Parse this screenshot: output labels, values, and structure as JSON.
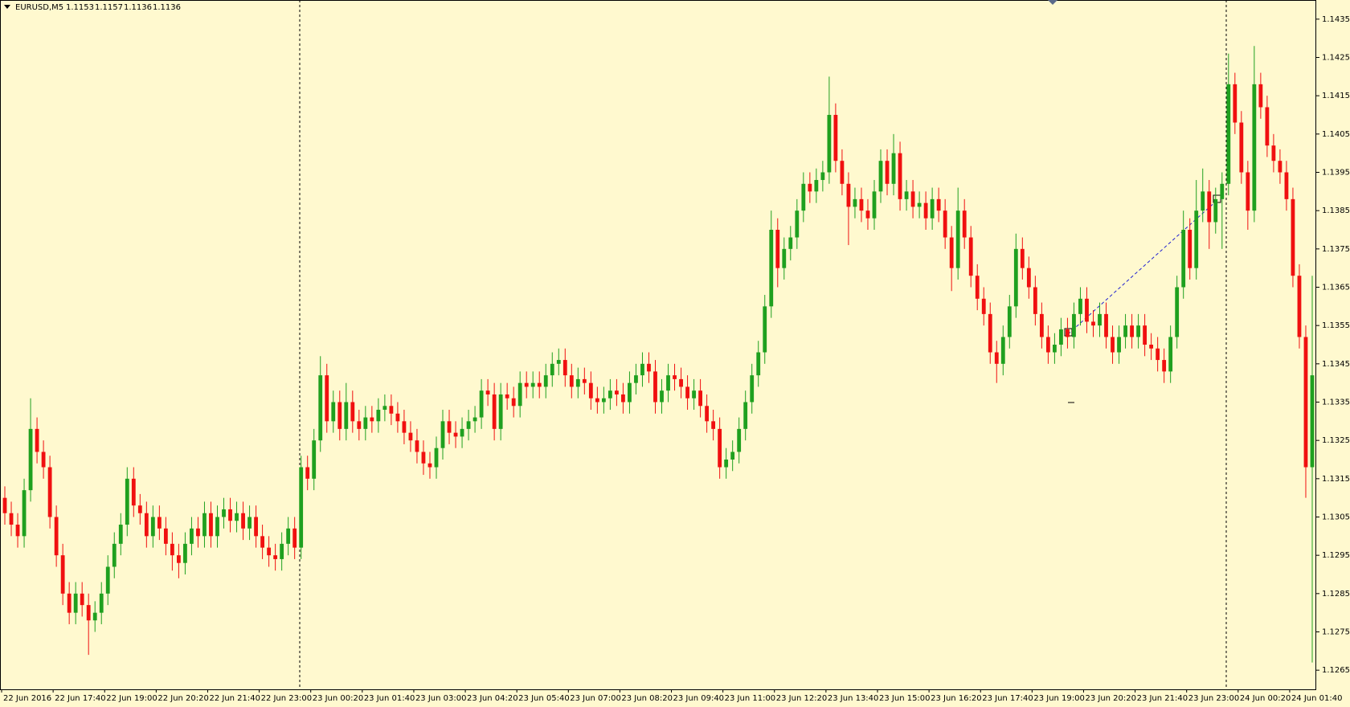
{
  "chart_data": {
    "type": "candlestick",
    "symbol": "EURUSD,M5",
    "quote": [
      1.1153,
      1.1157,
      1.1136,
      1.1136
    ],
    "up_color": "#1fa01f",
    "down_color": "#f01010",
    "ylim": [
      1.126,
      1.144
    ],
    "yticks": [
      1.1265,
      1.1275,
      1.1285,
      1.1295,
      1.1305,
      1.1315,
      1.1325,
      1.1335,
      1.1345,
      1.1355,
      1.1365,
      1.1375,
      1.1385,
      1.1395,
      1.1405,
      1.1415,
      1.1425,
      1.1435
    ],
    "xticks": [
      {
        "value": 0,
        "label": "22 Jun 2016"
      },
      {
        "value": 8,
        "label": "22 Jun 17:40"
      },
      {
        "value": 16,
        "label": "22 Jun 19:00"
      },
      {
        "value": 24,
        "label": "22 Jun 20:20"
      },
      {
        "value": 32,
        "label": "22 Jun 21:40"
      },
      {
        "value": 40,
        "label": "22 Jun 23:00"
      },
      {
        "value": 48,
        "label": "23 Jun 00:20"
      },
      {
        "value": 56,
        "label": "23 Jun 01:40"
      },
      {
        "value": 64,
        "label": "23 Jun 03:00"
      },
      {
        "value": 72,
        "label": "23 Jun 04:20"
      },
      {
        "value": 80,
        "label": "23 Jun 05:40"
      },
      {
        "value": 88,
        "label": "23 Jun 07:00"
      },
      {
        "value": 96,
        "label": "23 Jun 08:20"
      },
      {
        "value": 104,
        "label": "23 Jun 09:40"
      },
      {
        "value": 112,
        "label": "23 Jun 11:00"
      },
      {
        "value": 120,
        "label": "23 Jun 12:20"
      },
      {
        "value": 128,
        "label": "23 Jun 13:40"
      },
      {
        "value": 136,
        "label": "23 Jun 15:00"
      },
      {
        "value": 144,
        "label": "23 Jun 16:20"
      },
      {
        "value": 152,
        "label": "23 Jun 17:40"
      },
      {
        "value": 160,
        "label": "23 Jun 19:00"
      },
      {
        "value": 168,
        "label": "23 Jun 20:20"
      },
      {
        "value": 176,
        "label": "23 Jun 21:40"
      },
      {
        "value": 184,
        "label": "23 Jun 23:00"
      },
      {
        "value": 192,
        "label": "24 Jun 00:20"
      },
      {
        "value": 200,
        "label": "24 Jun 01:40"
      }
    ],
    "candles": [
      [
        1.131,
        1.1313,
        1.1303,
        1.1306
      ],
      [
        1.1306,
        1.1309,
        1.13,
        1.1303
      ],
      [
        1.1303,
        1.1306,
        1.1297,
        1.13
      ],
      [
        1.13,
        1.1315,
        1.1297,
        1.1312
      ],
      [
        1.1312,
        1.1336,
        1.1309,
        1.1328
      ],
      [
        1.1328,
        1.1331,
        1.1319,
        1.1322
      ],
      [
        1.1322,
        1.1325,
        1.1315,
        1.1318
      ],
      [
        1.1318,
        1.1321,
        1.1302,
        1.1305
      ],
      [
        1.1305,
        1.1308,
        1.1292,
        1.1295
      ],
      [
        1.1295,
        1.1298,
        1.1282,
        1.1285
      ],
      [
        1.1285,
        1.1288,
        1.1277,
        1.128
      ],
      [
        1.128,
        1.1288,
        1.1277,
        1.1285
      ],
      [
        1.1285,
        1.1288,
        1.1279,
        1.1282
      ],
      [
        1.1282,
        1.1285,
        1.1269,
        1.1278
      ],
      [
        1.1278,
        1.1283,
        1.1275,
        1.128
      ],
      [
        1.128,
        1.1288,
        1.1277,
        1.1285
      ],
      [
        1.1285,
        1.1295,
        1.1282,
        1.1292
      ],
      [
        1.1292,
        1.1301,
        1.1289,
        1.1298
      ],
      [
        1.1298,
        1.1306,
        1.1295,
        1.1303
      ],
      [
        1.1303,
        1.1318,
        1.13,
        1.1315
      ],
      [
        1.1315,
        1.1318,
        1.1305,
        1.1308
      ],
      [
        1.1308,
        1.1311,
        1.1303,
        1.1306
      ],
      [
        1.1306,
        1.1309,
        1.1297,
        1.13
      ],
      [
        1.13,
        1.1308,
        1.1297,
        1.1305
      ],
      [
        1.1305,
        1.1308,
        1.1299,
        1.1302
      ],
      [
        1.1302,
        1.1305,
        1.1295,
        1.1298
      ],
      [
        1.1298,
        1.1301,
        1.1291,
        1.1295
      ],
      [
        1.1295,
        1.1298,
        1.1289,
        1.1293
      ],
      [
        1.1293,
        1.1301,
        1.129,
        1.1298
      ],
      [
        1.1298,
        1.1305,
        1.1295,
        1.1302
      ],
      [
        1.1302,
        1.1305,
        1.1297,
        1.13
      ],
      [
        1.13,
        1.1309,
        1.1297,
        1.1306
      ],
      [
        1.1306,
        1.1309,
        1.1297,
        1.13
      ],
      [
        1.13,
        1.1308,
        1.1297,
        1.1305
      ],
      [
        1.1305,
        1.131,
        1.1302,
        1.1307
      ],
      [
        1.1307,
        1.131,
        1.1301,
        1.1304
      ],
      [
        1.1304,
        1.1309,
        1.1301,
        1.1306
      ],
      [
        1.1306,
        1.1309,
        1.1299,
        1.1302
      ],
      [
        1.1302,
        1.1308,
        1.1299,
        1.1305
      ],
      [
        1.1305,
        1.1308,
        1.1297,
        1.13
      ],
      [
        1.13,
        1.1303,
        1.1294,
        1.1297
      ],
      [
        1.1297,
        1.13,
        1.1292,
        1.1295
      ],
      [
        1.1295,
        1.1298,
        1.1291,
        1.1294
      ],
      [
        1.1294,
        1.1301,
        1.1291,
        1.1298
      ],
      [
        1.1298,
        1.1305,
        1.1295,
        1.1302
      ],
      [
        1.1302,
        1.1305,
        1.1294,
        1.1297
      ],
      [
        1.1297,
        1.1321,
        1.1294,
        1.1318
      ],
      [
        1.1318,
        1.1321,
        1.1312,
        1.1315
      ],
      [
        1.1315,
        1.1328,
        1.1312,
        1.1325
      ],
      [
        1.1325,
        1.1347,
        1.1322,
        1.1342
      ],
      [
        1.1342,
        1.1345,
        1.1327,
        1.133
      ],
      [
        1.133,
        1.1338,
        1.1327,
        1.1335
      ],
      [
        1.1335,
        1.1338,
        1.1325,
        1.1328
      ],
      [
        1.1328,
        1.134,
        1.1325,
        1.1335
      ],
      [
        1.1335,
        1.1338,
        1.1327,
        1.133
      ],
      [
        1.133,
        1.1333,
        1.1325,
        1.1328
      ],
      [
        1.1328,
        1.1334,
        1.1325,
        1.1331
      ],
      [
        1.1331,
        1.1334,
        1.1327,
        1.133
      ],
      [
        1.133,
        1.1336,
        1.1327,
        1.1333
      ],
      [
        1.1333,
        1.1337,
        1.133,
        1.1334
      ],
      [
        1.1334,
        1.1337,
        1.1329,
        1.1332
      ],
      [
        1.1332,
        1.1335,
        1.1327,
        1.133
      ],
      [
        1.133,
        1.1333,
        1.1324,
        1.1327
      ],
      [
        1.1327,
        1.133,
        1.1322,
        1.1325
      ],
      [
        1.1325,
        1.1328,
        1.1319,
        1.1322
      ],
      [
        1.1322,
        1.1325,
        1.1316,
        1.1319
      ],
      [
        1.1319,
        1.1322,
        1.1315,
        1.1318
      ],
      [
        1.1318,
        1.1326,
        1.1315,
        1.1323
      ],
      [
        1.1323,
        1.1333,
        1.132,
        1.133
      ],
      [
        1.133,
        1.1333,
        1.1324,
        1.1327
      ],
      [
        1.1327,
        1.133,
        1.1323,
        1.1326
      ],
      [
        1.1326,
        1.1331,
        1.1323,
        1.1328
      ],
      [
        1.1328,
        1.1333,
        1.1325,
        1.133
      ],
      [
        1.133,
        1.1334,
        1.1327,
        1.1331
      ],
      [
        1.1331,
        1.1341,
        1.1328,
        1.1338
      ],
      [
        1.1338,
        1.1341,
        1.1334,
        1.1337
      ],
      [
        1.1337,
        1.134,
        1.1325,
        1.1328
      ],
      [
        1.1328,
        1.134,
        1.1325,
        1.1337
      ],
      [
        1.1337,
        1.134,
        1.1333,
        1.1336
      ],
      [
        1.1336,
        1.1339,
        1.1331,
        1.1334
      ],
      [
        1.1334,
        1.1343,
        1.1331,
        1.134
      ],
      [
        1.134,
        1.1343,
        1.1336,
        1.1339
      ],
      [
        1.1339,
        1.1343,
        1.1336,
        1.134
      ],
      [
        1.134,
        1.1343,
        1.1336,
        1.1339
      ],
      [
        1.1339,
        1.1345,
        1.1336,
        1.1342
      ],
      [
        1.1342,
        1.1348,
        1.1339,
        1.1345
      ],
      [
        1.1345,
        1.1349,
        1.1342,
        1.1346
      ],
      [
        1.1346,
        1.1349,
        1.1339,
        1.1342
      ],
      [
        1.1342,
        1.1345,
        1.1336,
        1.1339
      ],
      [
        1.1339,
        1.1344,
        1.1336,
        1.1341
      ],
      [
        1.1341,
        1.1344,
        1.1337,
        1.134
      ],
      [
        1.134,
        1.1343,
        1.1333,
        1.1336
      ],
      [
        1.1336,
        1.1339,
        1.1332,
        1.1335
      ],
      [
        1.1335,
        1.1339,
        1.1332,
        1.1336
      ],
      [
        1.1336,
        1.1341,
        1.1333,
        1.1338
      ],
      [
        1.1338,
        1.1341,
        1.1334,
        1.1337
      ],
      [
        1.1337,
        1.134,
        1.1332,
        1.1335
      ],
      [
        1.1335,
        1.1343,
        1.1332,
        1.134
      ],
      [
        1.134,
        1.1345,
        1.1337,
        1.1342
      ],
      [
        1.1342,
        1.1348,
        1.1339,
        1.1345
      ],
      [
        1.1345,
        1.1348,
        1.134,
        1.1343
      ],
      [
        1.1343,
        1.1346,
        1.1332,
        1.1335
      ],
      [
        1.1335,
        1.1341,
        1.1332,
        1.1338
      ],
      [
        1.1338,
        1.1345,
        1.1335,
        1.1342
      ],
      [
        1.1342,
        1.1345,
        1.1338,
        1.1341
      ],
      [
        1.1341,
        1.1344,
        1.1336,
        1.1339
      ],
      [
        1.1339,
        1.1342,
        1.1333,
        1.1336
      ],
      [
        1.1336,
        1.1341,
        1.1333,
        1.1338
      ],
      [
        1.1338,
        1.1341,
        1.1331,
        1.1334
      ],
      [
        1.1334,
        1.1337,
        1.1327,
        1.133
      ],
      [
        1.133,
        1.1333,
        1.1325,
        1.1328
      ],
      [
        1.1328,
        1.1331,
        1.1315,
        1.1318
      ],
      [
        1.1318,
        1.1323,
        1.1315,
        1.132
      ],
      [
        1.132,
        1.1325,
        1.1317,
        1.1322
      ],
      [
        1.1322,
        1.1331,
        1.1319,
        1.1328
      ],
      [
        1.1328,
        1.1338,
        1.1325,
        1.1335
      ],
      [
        1.1335,
        1.1345,
        1.1332,
        1.1342
      ],
      [
        1.1342,
        1.1351,
        1.1339,
        1.1348
      ],
      [
        1.1348,
        1.1363,
        1.1345,
        1.136
      ],
      [
        1.136,
        1.1385,
        1.1357,
        1.138
      ],
      [
        1.138,
        1.1383,
        1.1365,
        1.137
      ],
      [
        1.137,
        1.1378,
        1.1367,
        1.1375
      ],
      [
        1.1375,
        1.1381,
        1.1372,
        1.1378
      ],
      [
        1.1378,
        1.1388,
        1.1375,
        1.1385
      ],
      [
        1.1385,
        1.1395,
        1.1382,
        1.1392
      ],
      [
        1.1392,
        1.1395,
        1.1387,
        1.139
      ],
      [
        1.139,
        1.1396,
        1.1387,
        1.1393
      ],
      [
        1.1393,
        1.1398,
        1.139,
        1.1395
      ],
      [
        1.1395,
        1.142,
        1.1392,
        1.141
      ],
      [
        1.141,
        1.1413,
        1.1395,
        1.1398
      ],
      [
        1.1398,
        1.1401,
        1.1389,
        1.1392
      ],
      [
        1.1392,
        1.1395,
        1.1376,
        1.1386
      ],
      [
        1.1386,
        1.1391,
        1.1383,
        1.1388
      ],
      [
        1.1388,
        1.1391,
        1.1382,
        1.1385
      ],
      [
        1.1385,
        1.1388,
        1.138,
        1.1383
      ],
      [
        1.1383,
        1.1393,
        1.138,
        1.139
      ],
      [
        1.139,
        1.1401,
        1.1387,
        1.1398
      ],
      [
        1.1398,
        1.1401,
        1.1389,
        1.1392
      ],
      [
        1.1392,
        1.1405,
        1.1389,
        1.14
      ],
      [
        1.14,
        1.1403,
        1.1385,
        1.1388
      ],
      [
        1.1388,
        1.1393,
        1.1385,
        1.139
      ],
      [
        1.139,
        1.1393,
        1.1383,
        1.1386
      ],
      [
        1.1386,
        1.139,
        1.1383,
        1.1387
      ],
      [
        1.1387,
        1.139,
        1.138,
        1.1383
      ],
      [
        1.1383,
        1.1391,
        1.138,
        1.1388
      ],
      [
        1.1388,
        1.1391,
        1.1382,
        1.1385
      ],
      [
        1.1385,
        1.1388,
        1.1375,
        1.1378
      ],
      [
        1.1378,
        1.1381,
        1.1364,
        1.137
      ],
      [
        1.137,
        1.1391,
        1.1367,
        1.1385
      ],
      [
        1.1385,
        1.1388,
        1.1375,
        1.1378
      ],
      [
        1.1378,
        1.1381,
        1.1365,
        1.1368
      ],
      [
        1.1368,
        1.1371,
        1.1359,
        1.1362
      ],
      [
        1.1362,
        1.1365,
        1.1355,
        1.1358
      ],
      [
        1.1358,
        1.1361,
        1.1345,
        1.1348
      ],
      [
        1.1348,
        1.1351,
        1.134,
        1.1345
      ],
      [
        1.1345,
        1.1355,
        1.1342,
        1.1352
      ],
      [
        1.1352,
        1.1363,
        1.1349,
        1.136
      ],
      [
        1.136,
        1.1379,
        1.1357,
        1.1375
      ],
      [
        1.1375,
        1.1378,
        1.1367,
        1.137
      ],
      [
        1.137,
        1.1373,
        1.1362,
        1.1365
      ],
      [
        1.1365,
        1.1368,
        1.1355,
        1.1358
      ],
      [
        1.1358,
        1.1361,
        1.1349,
        1.1352
      ],
      [
        1.1352,
        1.1355,
        1.1345,
        1.1348
      ],
      [
        1.1348,
        1.1353,
        1.1345,
        1.135
      ],
      [
        1.135,
        1.1357,
        1.1347,
        1.1354
      ],
      [
        1.1354,
        1.1357,
        1.1349,
        1.1352
      ],
      [
        1.1352,
        1.1361,
        1.1349,
        1.1358
      ],
      [
        1.1358,
        1.1365,
        1.1355,
        1.1362
      ],
      [
        1.1362,
        1.1365,
        1.1353,
        1.1356
      ],
      [
        1.1356,
        1.1359,
        1.1352,
        1.1355
      ],
      [
        1.1355,
        1.1361,
        1.1352,
        1.1358
      ],
      [
        1.1358,
        1.1361,
        1.1349,
        1.1352
      ],
      [
        1.1352,
        1.1355,
        1.1345,
        1.1348
      ],
      [
        1.1348,
        1.1355,
        1.1345,
        1.1352
      ],
      [
        1.1352,
        1.1358,
        1.1349,
        1.1355
      ],
      [
        1.1355,
        1.1358,
        1.1349,
        1.1352
      ],
      [
        1.1352,
        1.1358,
        1.1349,
        1.1355
      ],
      [
        1.1355,
        1.1358,
        1.1347,
        1.135
      ],
      [
        1.135,
        1.1353,
        1.1346,
        1.1349
      ],
      [
        1.1349,
        1.1352,
        1.1343,
        1.1346
      ],
      [
        1.1346,
        1.1349,
        1.134,
        1.1343
      ],
      [
        1.1343,
        1.1355,
        1.134,
        1.1352
      ],
      [
        1.1352,
        1.1368,
        1.1349,
        1.1365
      ],
      [
        1.1365,
        1.1385,
        1.1362,
        1.138
      ],
      [
        1.138,
        1.1383,
        1.1367,
        1.137
      ],
      [
        1.137,
        1.1393,
        1.1367,
        1.1385
      ],
      [
        1.1385,
        1.1396,
        1.1382,
        1.139
      ],
      [
        1.139,
        1.1393,
        1.1375,
        1.1382
      ],
      [
        1.1382,
        1.1391,
        1.1379,
        1.1388
      ],
      [
        1.1388,
        1.1395,
        1.1375,
        1.1392
      ],
      [
        1.1392,
        1.1426,
        1.1389,
        1.1418
      ],
      [
        1.1418,
        1.1421,
        1.1405,
        1.1408
      ],
      [
        1.1408,
        1.1411,
        1.1392,
        1.1395
      ],
      [
        1.1395,
        1.1398,
        1.138,
        1.1385
      ],
      [
        1.1385,
        1.1428,
        1.1382,
        1.1418
      ],
      [
        1.1418,
        1.1421,
        1.1409,
        1.1412
      ],
      [
        1.1412,
        1.1415,
        1.1399,
        1.1402
      ],
      [
        1.1402,
        1.1405,
        1.1395,
        1.1398
      ],
      [
        1.1398,
        1.1401,
        1.1392,
        1.1395
      ],
      [
        1.1395,
        1.1398,
        1.1385,
        1.1388
      ],
      [
        1.1388,
        1.1391,
        1.1365,
        1.1368
      ],
      [
        1.1368,
        1.1371,
        1.1349,
        1.1352
      ],
      [
        1.1352,
        1.1355,
        1.131,
        1.1318
      ],
      [
        1.1318,
        1.1368,
        1.1267,
        1.1342
      ]
    ]
  }
}
